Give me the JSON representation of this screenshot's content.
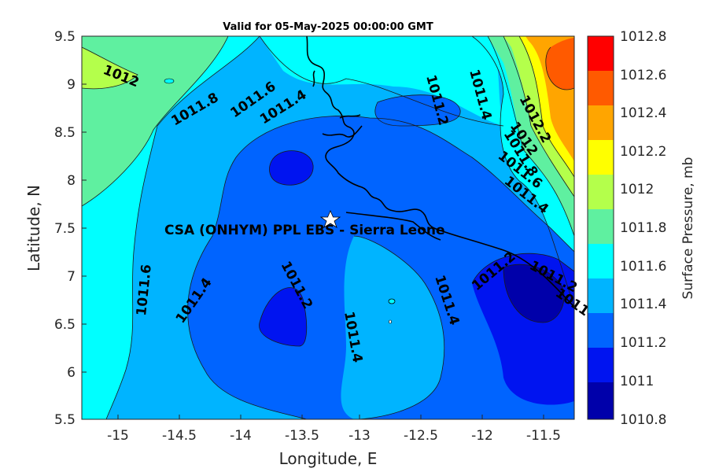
{
  "map": {
    "title": "Valid for 05-May-2025 00:00:00 GMT",
    "x_axis_label": "Longitude, E",
    "y_axis_label": "Latitude, N",
    "x_ticks": [
      "-15",
      "-14.5",
      "-14",
      "-13.5",
      "-13",
      "-12.5",
      "-12",
      "-11.5"
    ],
    "y_ticks": [
      "9.5",
      "9",
      "8.5",
      "8",
      "7.5",
      "7",
      "6.5",
      "6",
      "5.5"
    ],
    "site_label": "CSA (ONHYM) PPL EBS  - Sierra Leone",
    "site_marker": "white-star-icon",
    "contour_labels": [
      "1012",
      "1011.8",
      "1011.6",
      "1011.4",
      "1011.2",
      "1011.4",
      "1011.2",
      "1012.2",
      "1012",
      "1011.8",
      "1011.6",
      "1011.4",
      "1011.6",
      "1011.4",
      "1011.2",
      "1011.4",
      "1011.4",
      "1011.2",
      "1011"
    ],
    "colorbar": {
      "title": "Surface Pressure, mb",
      "labels": [
        "1012.8",
        "1012.6",
        "1012.4",
        "1012.2",
        "1012",
        "1011.8",
        "1011.6",
        "1011.4",
        "1011.2",
        "1011",
        "1010.8"
      ],
      "colors": [
        "#ff0000",
        "#ff5a00",
        "#ffa500",
        "#ffff00",
        "#b4ff4b",
        "#5ff0a0",
        "#00ffff",
        "#00b4ff",
        "#0064ff",
        "#0014f0",
        "#0000aa"
      ]
    }
  },
  "chart_data": {
    "type": "heatmap",
    "title": "Valid for 05-May-2025 00:00:00 GMT",
    "xlabel": "Longitude, E",
    "ylabel": "Latitude, N",
    "xlim": [
      -15.25,
      -11.25
    ],
    "ylim": [
      5.5,
      9.5
    ],
    "colorbar_label": "Surface Pressure, mb",
    "levels": [
      1010.8,
      1011,
      1011.2,
      1011.4,
      1011.6,
      1011.8,
      1012,
      1012.2,
      1012.4,
      1012.6,
      1012.8
    ],
    "site": {
      "name": "CSA (ONHYM) PPL EBS  - Sierra Leone",
      "lon": -13.25,
      "lat": 7.6
    }
  }
}
